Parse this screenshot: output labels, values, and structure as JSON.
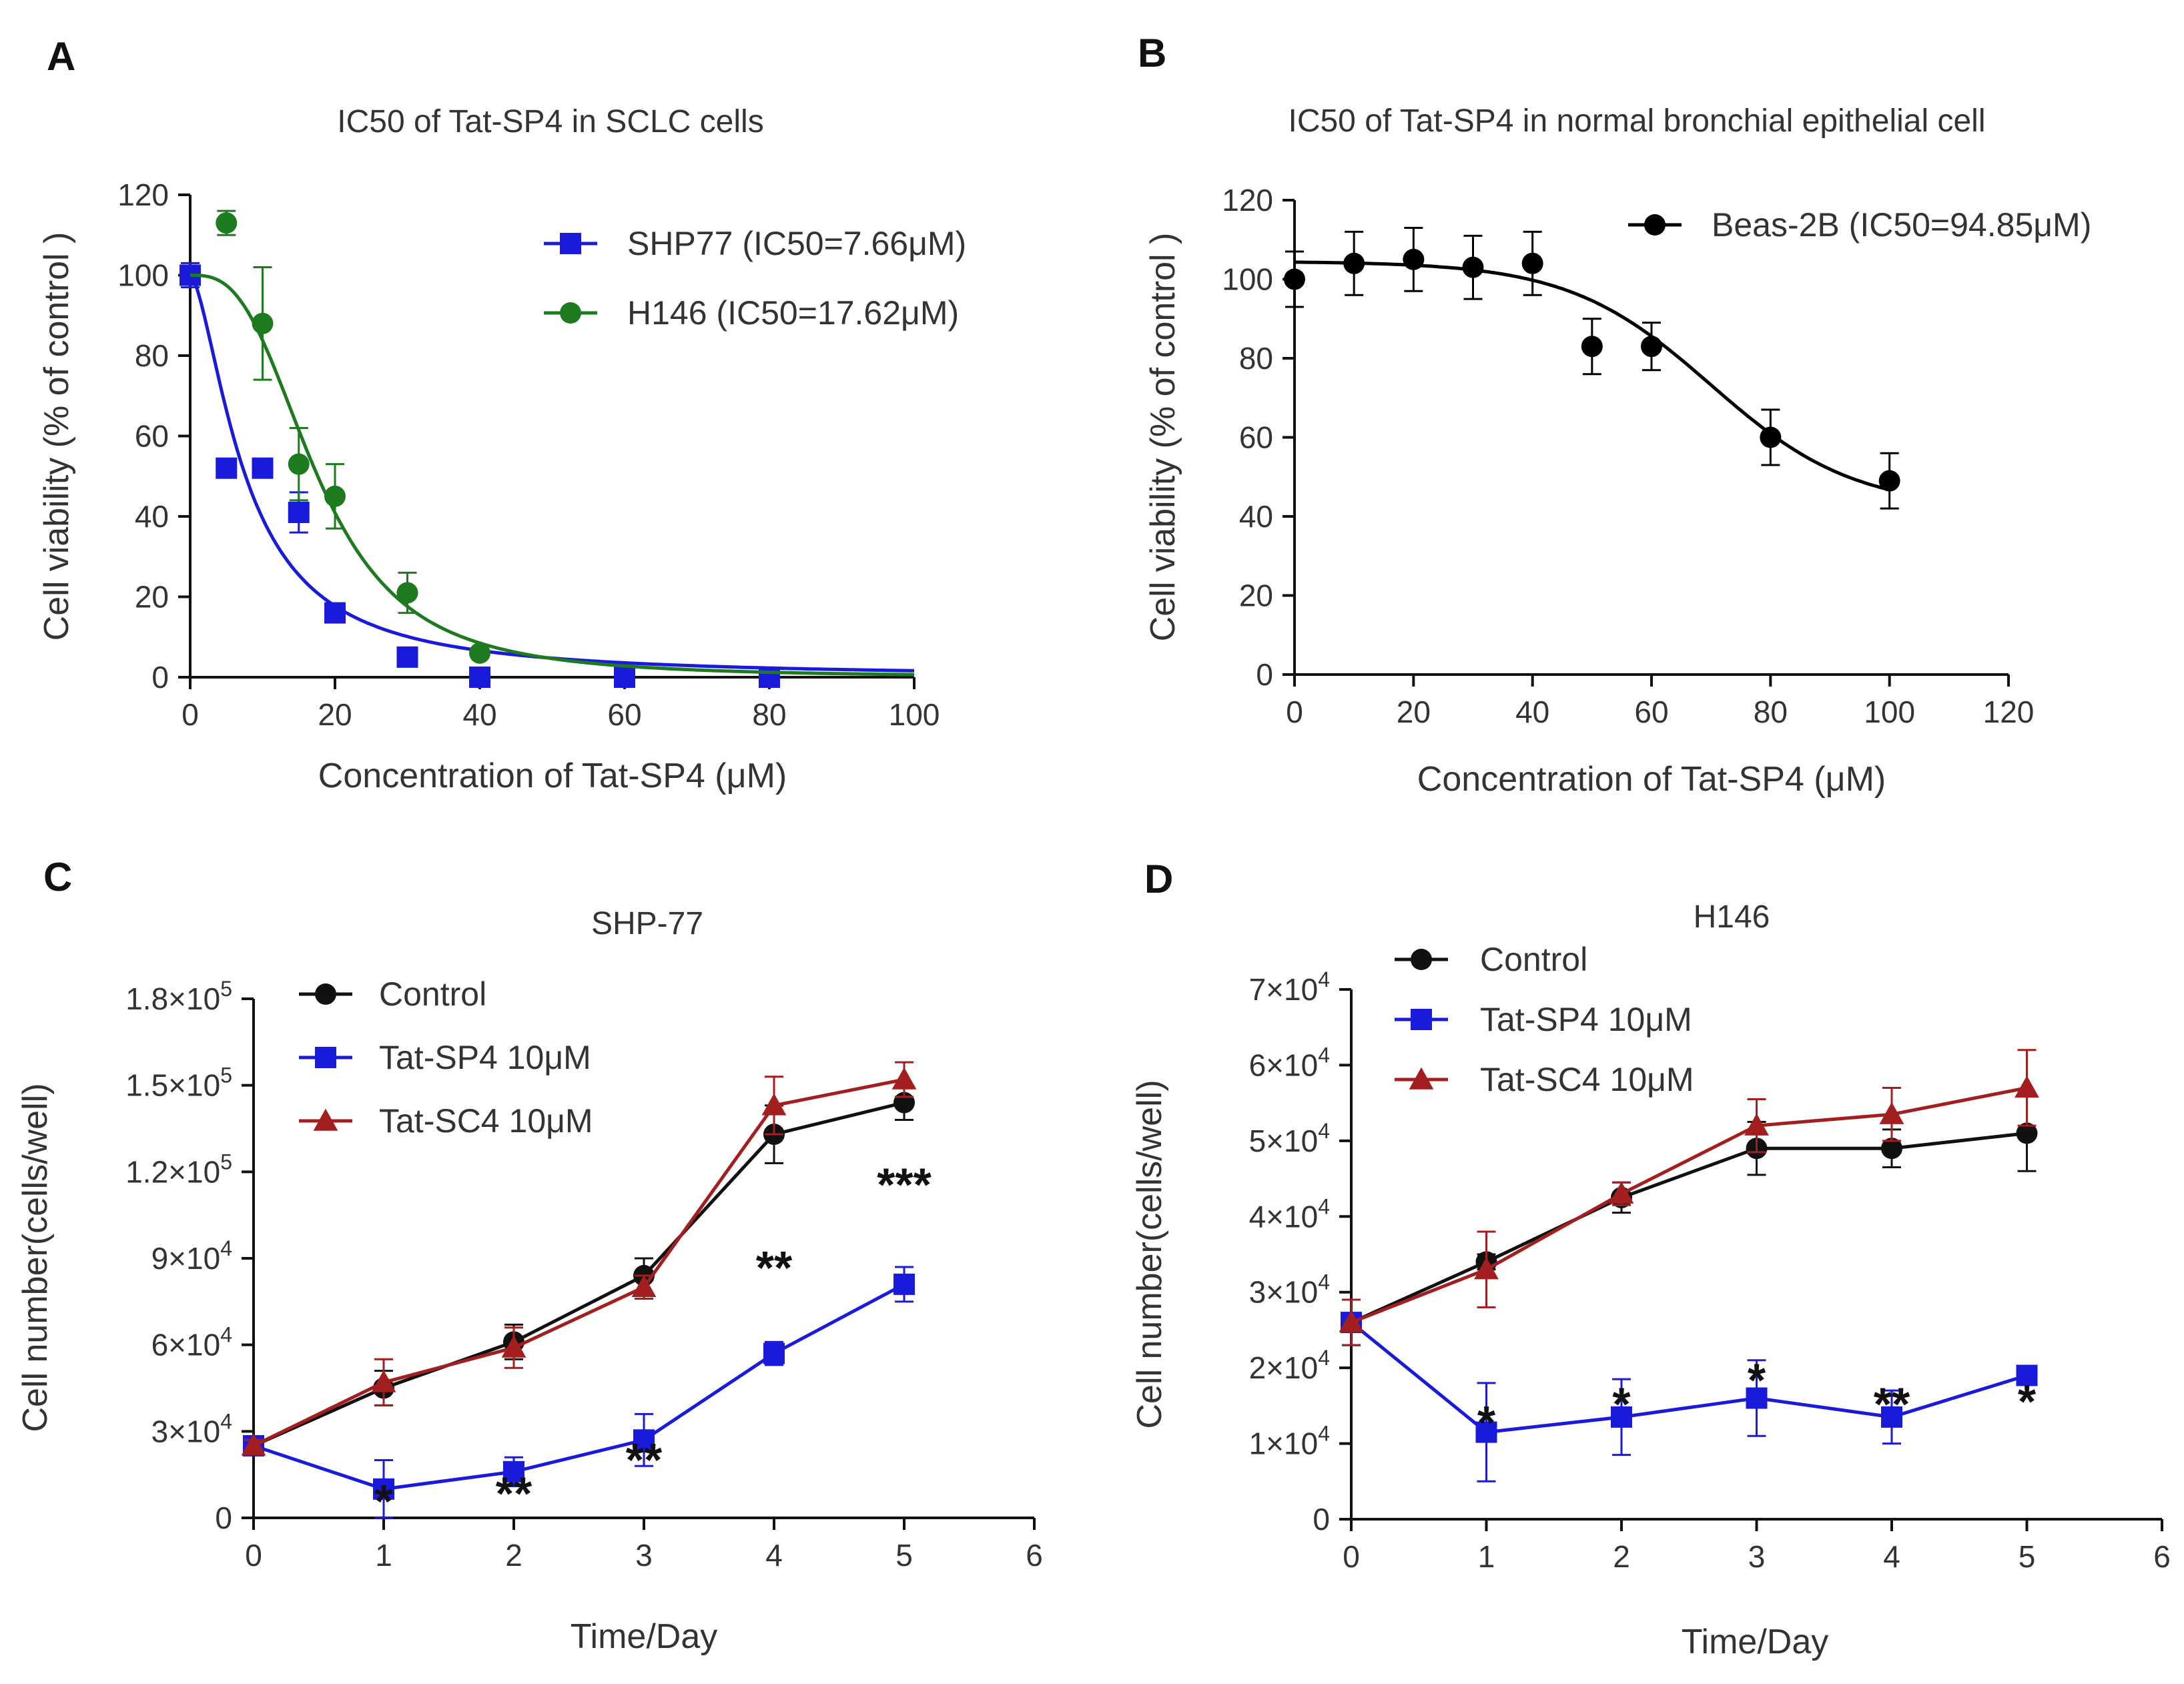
{
  "chart_data": [
    {
      "panel": "A",
      "type": "scatter",
      "title": "IC50 of Tat-SP4 in SCLC cells",
      "xlabel": "Concentration of Tat-SP4 (μM)",
      "ylabel": "Cell viability (% of control )",
      "xlim": [
        0,
        100
      ],
      "ylim": [
        0,
        120
      ],
      "xticks": [
        "0",
        "20",
        "40",
        "60",
        "80",
        "100"
      ],
      "yticks": [
        "0",
        "20",
        "40",
        "60",
        "80",
        "100",
        "120"
      ],
      "legend_position": "top-right",
      "series": [
        {
          "name": "SHP77 (IC50=7.66μM)",
          "color": "#1a1adb",
          "marker": "square",
          "x": [
            0,
            5,
            10,
            15,
            20,
            30,
            40,
            60,
            80
          ],
          "y": [
            100,
            52,
            52,
            41,
            16,
            5,
            0,
            0,
            0
          ],
          "err": [
            3,
            2,
            2,
            5,
            2,
            1,
            0,
            0,
            0
          ],
          "fit": {
            "type": "logistic",
            "top": 100,
            "ic50": 7.66,
            "hill": 1.6
          }
        },
        {
          "name": "H146 (IC50=17.62μM)",
          "color": "#1e7a1e",
          "marker": "circle",
          "x": [
            5,
            10,
            15,
            20,
            30,
            40
          ],
          "y": [
            113,
            88,
            53,
            45,
            21,
            6
          ],
          "err": [
            3,
            14,
            9,
            8,
            5,
            1
          ],
          "fit": {
            "type": "logistic",
            "top": 100,
            "ic50": 17.62,
            "hill": 2.9
          }
        }
      ]
    },
    {
      "panel": "B",
      "type": "scatter",
      "title": "IC50 of Tat-SP4 in normal bronchial epithelial cell",
      "xlabel": "Concentration of Tat-SP4 (μM)",
      "ylabel": "Cell viability (% of control )",
      "xlim": [
        0,
        120
      ],
      "ylim": [
        0,
        120
      ],
      "xticks": [
        "0",
        "20",
        "40",
        "60",
        "80",
        "100",
        "120"
      ],
      "yticks": [
        "0",
        "20",
        "40",
        "60",
        "80",
        "100",
        "120"
      ],
      "legend_position": "top-right",
      "series": [
        {
          "name": "Beas-2B (IC50=94.85μM)",
          "color": "#000000",
          "marker": "circle",
          "x": [
            0,
            10,
            20,
            30,
            40,
            50,
            60,
            80,
            100
          ],
          "y": [
            100,
            104,
            105,
            103,
            104,
            83,
            83,
            60,
            49
          ],
          "err": [
            7,
            8,
            8,
            8,
            8,
            7,
            6,
            7,
            7
          ],
          "fit": {
            "type": "sigmoid",
            "top": 104.5,
            "bottom": 42,
            "mid": 70,
            "slope": 12
          }
        }
      ]
    },
    {
      "panel": "C",
      "type": "line",
      "title": "SHP-77",
      "xlabel": "Time/Day",
      "ylabel": "Cell number(cells/well)",
      "xlim": [
        0,
        6
      ],
      "ylim": [
        0,
        180000
      ],
      "xticks": [
        "0",
        "1",
        "2",
        "3",
        "4",
        "5",
        "6"
      ],
      "yticks": [
        {
          "base": "0",
          "exp": ""
        },
        {
          "base": "3×10",
          "exp": "4"
        },
        {
          "base": "6×10",
          "exp": "4"
        },
        {
          "base": "9×10",
          "exp": "4"
        },
        {
          "base": "1.2×10",
          "exp": "5"
        },
        {
          "base": "1.5×10",
          "exp": "5"
        },
        {
          "base": "1.8×10",
          "exp": "5"
        }
      ],
      "legend_position": "top-left",
      "series": [
        {
          "name": "Control",
          "color": "#111111",
          "marker": "circle",
          "x": [
            0,
            1,
            2,
            3,
            4,
            5
          ],
          "y": [
            25000,
            45000,
            61000,
            84000,
            133000,
            144000
          ],
          "err": [
            2000,
            6000,
            6000,
            6000,
            10000,
            6000
          ]
        },
        {
          "name": "Tat-SP4 10μM",
          "color": "#1a1adb",
          "marker": "square",
          "x": [
            0,
            1,
            2,
            3,
            4,
            5
          ],
          "y": [
            25000,
            10000,
            16000,
            27000,
            57000,
            81000
          ],
          "err": [
            2000,
            10000,
            5000,
            9000,
            4000,
            6000
          ]
        },
        {
          "name": "Tat-SC4 10μM",
          "color": "#a31f1f",
          "marker": "triangle",
          "x": [
            0,
            1,
            2,
            3,
            4,
            5
          ],
          "y": [
            25000,
            47000,
            59000,
            80000,
            143000,
            152000
          ],
          "err": [
            2000,
            8000,
            7000,
            4000,
            10000,
            6000
          ]
        }
      ],
      "annotations": [
        {
          "x": 1,
          "text": "*",
          "pos": 0.05
        },
        {
          "x": 2,
          "text": "**",
          "pos": 0.065
        },
        {
          "x": 3,
          "text": "**",
          "pos": 0.13
        },
        {
          "x": 4,
          "text": "**",
          "pos": 0.5
        },
        {
          "x": 5,
          "text": "***",
          "pos": 0.66
        }
      ]
    },
    {
      "panel": "D",
      "type": "line",
      "title": "H146",
      "xlabel": "Time/Day",
      "ylabel": "Cell number(cells/well)",
      "xlim": [
        0,
        6
      ],
      "ylim": [
        0,
        70000
      ],
      "xticks": [
        "0",
        "1",
        "2",
        "3",
        "4",
        "5",
        "6"
      ],
      "yticks": [
        {
          "base": "0",
          "exp": ""
        },
        {
          "base": "1×10",
          "exp": "4"
        },
        {
          "base": "2×10",
          "exp": "4"
        },
        {
          "base": "3×10",
          "exp": "4"
        },
        {
          "base": "4×10",
          "exp": "4"
        },
        {
          "base": "5×10",
          "exp": "4"
        },
        {
          "base": "6×10",
          "exp": "4"
        },
        {
          "base": "7×10",
          "exp": "4"
        }
      ],
      "legend_position": "top-left",
      "series": [
        {
          "name": "Control",
          "color": "#111111",
          "marker": "circle",
          "x": [
            0,
            1,
            2,
            3,
            4,
            5
          ],
          "y": [
            26000,
            34000,
            42500,
            49000,
            49000,
            51000
          ],
          "err": [
            3000,
            1000,
            2000,
            3500,
            2500,
            5000
          ]
        },
        {
          "name": "Tat-SP4 10μM",
          "color": "#1a1adb",
          "marker": "square",
          "x": [
            0,
            1,
            2,
            3,
            4,
            5
          ],
          "y": [
            26000,
            11500,
            13500,
            16000,
            13500,
            19000
          ],
          "err": [
            3000,
            6500,
            5000,
            5000,
            3500,
            1000
          ]
        },
        {
          "name": "Tat-SC4 10μM",
          "color": "#a31f1f",
          "marker": "triangle",
          "x": [
            0,
            1,
            2,
            3,
            4,
            5
          ],
          "y": [
            26000,
            33000,
            43000,
            52000,
            53500,
            57000
          ],
          "err": [
            3000,
            5000,
            1500,
            3500,
            3500,
            5000
          ]
        }
      ],
      "annotations": [
        {
          "x": 1,
          "text": "*",
          "pos": 0.2
        },
        {
          "x": 2,
          "text": "*",
          "pos": 0.235
        },
        {
          "x": 3,
          "text": "*",
          "pos": 0.28
        },
        {
          "x": 4,
          "text": "**",
          "pos": 0.235
        },
        {
          "x": 5,
          "text": "*",
          "pos": 0.24
        }
      ]
    }
  ]
}
